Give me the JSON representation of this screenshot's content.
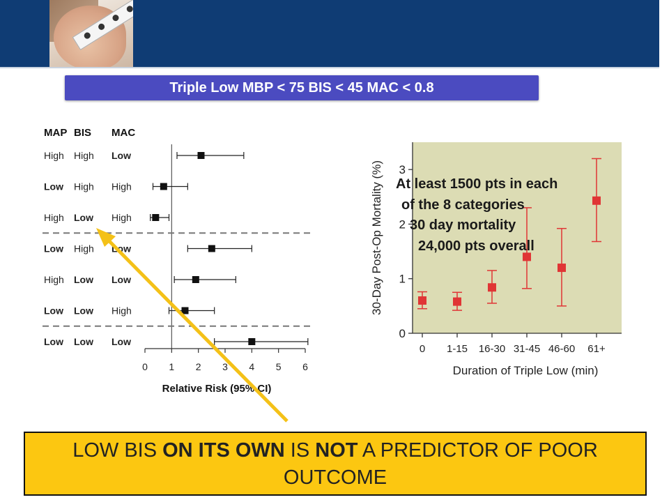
{
  "banner_title": "Triple Low MBP < 75 BIS < 45 MAC < 0.8",
  "callout": {
    "part1": "LOW BIS ",
    "part2": "ON ITS OWN",
    "part3": " IS ",
    "part4": "NOT",
    "part5": " A PREDICTOR OF POOR OUTCOME"
  },
  "chart_data": [
    {
      "type": "scatter",
      "title": "",
      "column_headers": [
        "MAP",
        "BIS",
        "MAC"
      ],
      "xlabel": "Relative Risk (95% CI)",
      "xlim": [
        0,
        6
      ],
      "xticks": [
        0,
        1,
        2,
        3,
        4,
        5,
        6
      ],
      "reference_line": 1,
      "rows": [
        {
          "map": "High",
          "bis": "High",
          "mac": "Low",
          "rr": 2.1,
          "ci": [
            1.2,
            3.7
          ]
        },
        {
          "map": "Low",
          "bis": "High",
          "mac": "High",
          "rr": 0.7,
          "ci": [
            0.3,
            1.6
          ]
        },
        {
          "map": "High",
          "bis": "Low",
          "mac": "High",
          "rr": 0.4,
          "ci": [
            0.2,
            0.9
          ]
        },
        {
          "map": "Low",
          "bis": "High",
          "mac": "Low",
          "rr": 2.5,
          "ci": [
            1.6,
            4.0
          ]
        },
        {
          "map": "High",
          "bis": "Low",
          "mac": "Low",
          "rr": 1.9,
          "ci": [
            1.1,
            3.4
          ]
        },
        {
          "map": "Low",
          "bis": "Low",
          "mac": "High",
          "rr": 1.5,
          "ci": [
            0.9,
            2.6
          ]
        },
        {
          "map": "Low",
          "bis": "Low",
          "mac": "Low",
          "rr": 4.0,
          "ci": [
            2.6,
            6.1
          ]
        }
      ],
      "separators_after_rows": [
        3,
        6
      ]
    },
    {
      "type": "scatter",
      "title": "",
      "xlabel": "Duration of Triple Low (min)",
      "ylabel": "30-Day Post-Op Mortality (%)",
      "ylim": [
        0,
        3.5
      ],
      "yticks": [
        0,
        1,
        2,
        3
      ],
      "categories": [
        "0",
        "1-15",
        "16-30",
        "31-45",
        "46-60",
        "61+"
      ],
      "values": [
        0.6,
        0.58,
        0.84,
        1.4,
        1.2,
        2.43
      ],
      "ci_low": [
        0.45,
        0.42,
        0.55,
        0.82,
        0.5,
        1.68
      ],
      "ci_high": [
        0.76,
        0.75,
        1.15,
        2.3,
        1.92,
        3.2
      ],
      "annotation": [
        "At least 1500 pts in each",
        "of the 8 categories",
        "30 day mortality",
        "24,000 pts overall"
      ]
    }
  ],
  "colors": {
    "header": "#0f3c74",
    "banner": "#4b4bc0",
    "callout": "#fcc711",
    "arrow": "#f4c118",
    "marker2": "#e03535",
    "plot_bg": "#dcdcb4"
  }
}
